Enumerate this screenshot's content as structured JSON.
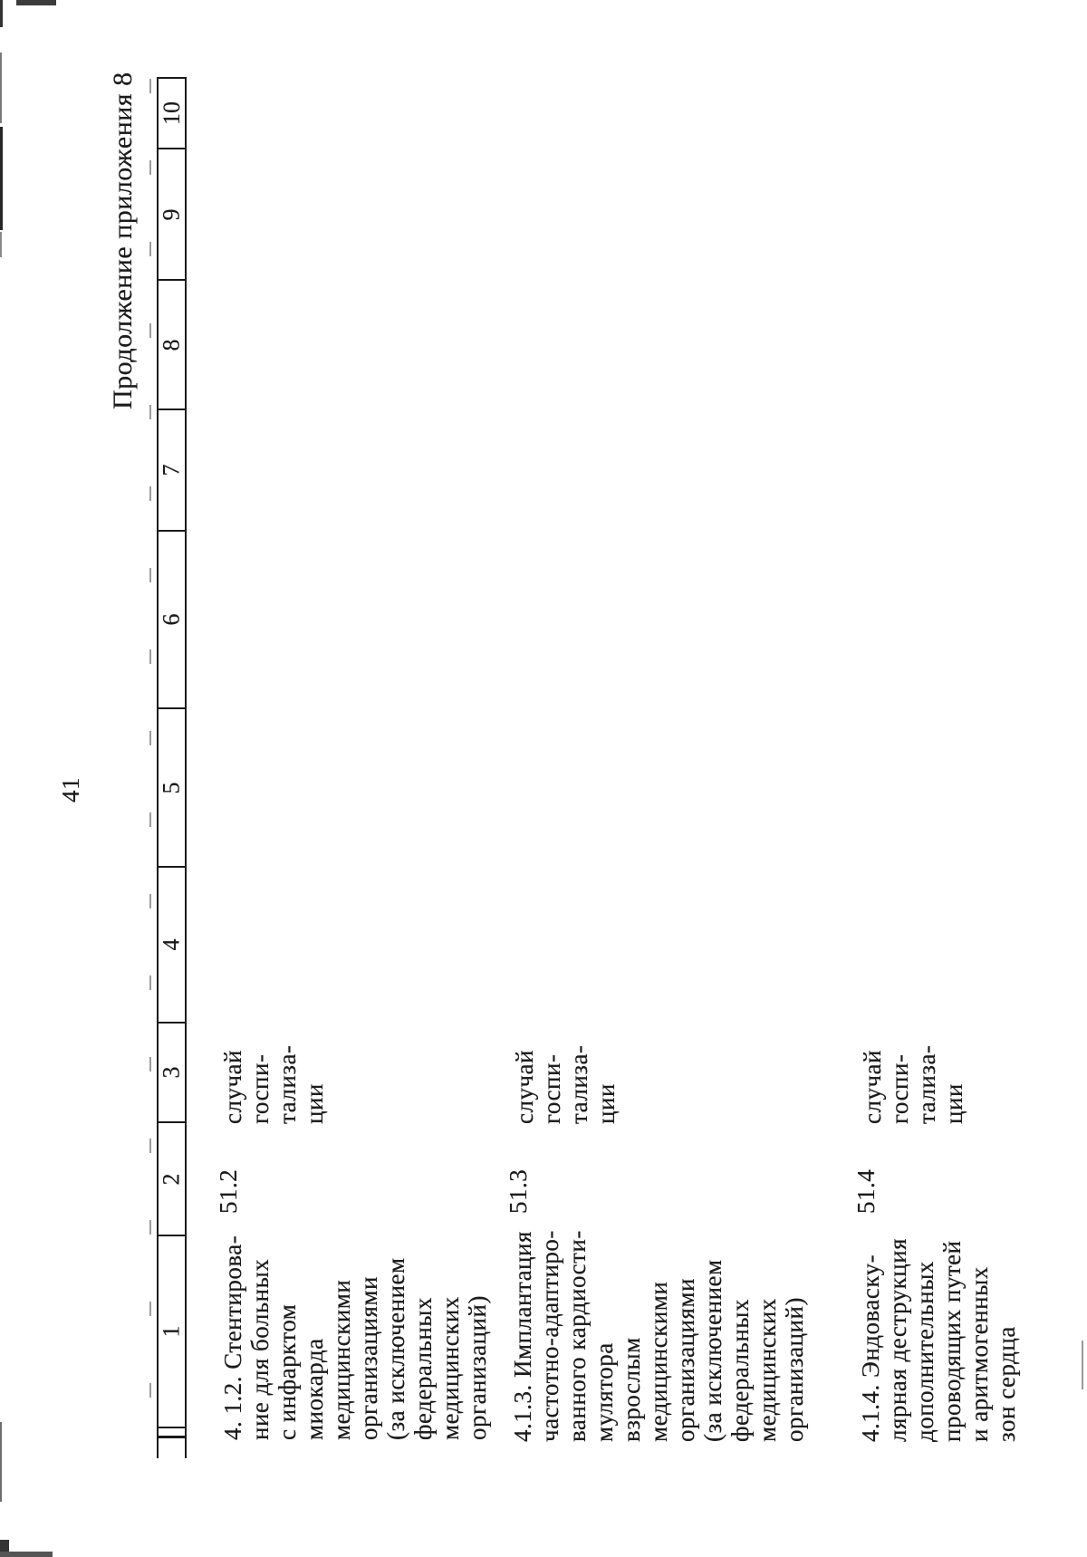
{
  "page": {
    "continuation_header": "Продолжение приложения 8",
    "page_number": "41",
    "ink_color": "#1b1b1b"
  },
  "table": {
    "column_numbers": [
      "1",
      "2",
      "3",
      "4",
      "5",
      "6",
      "7",
      "8",
      "9",
      "10"
    ],
    "rows": [
      {
        "name_lines": [
          "4. 1.2. Стентирова-",
          "ние для больных",
          "с инфарктом",
          "миокарда",
          "медицинскими",
          "организациями",
          "(за исключением",
          "федеральных",
          "медицинских",
          "организаций)"
        ],
        "code": "51.2",
        "unit_lines": [
          "случай",
          "госпи-",
          "тализа-",
          "ции"
        ]
      },
      {
        "name_lines": [
          "4.1.3. Имплантация",
          "частотно-адаптиро-",
          "ванного кардиости-",
          "мулятора",
          "взрослым",
          "медицинскими",
          "организациями",
          "(за исключением",
          "федеральных",
          "медицинских",
          "организаций)"
        ],
        "code": "51.3",
        "unit_lines": [
          "случай",
          "госпи-",
          "тализа-",
          "ции"
        ]
      },
      {
        "name_lines": [
          "4.1.4. Эндоваску-",
          "лярная деструкция",
          "дополнительных",
          "проводящих путей",
          "и аритмогенных",
          "зон сердца"
        ],
        "code": "51.4",
        "unit_lines": [
          "случай",
          "госпи-",
          "тализа-",
          "ции"
        ]
      }
    ]
  }
}
